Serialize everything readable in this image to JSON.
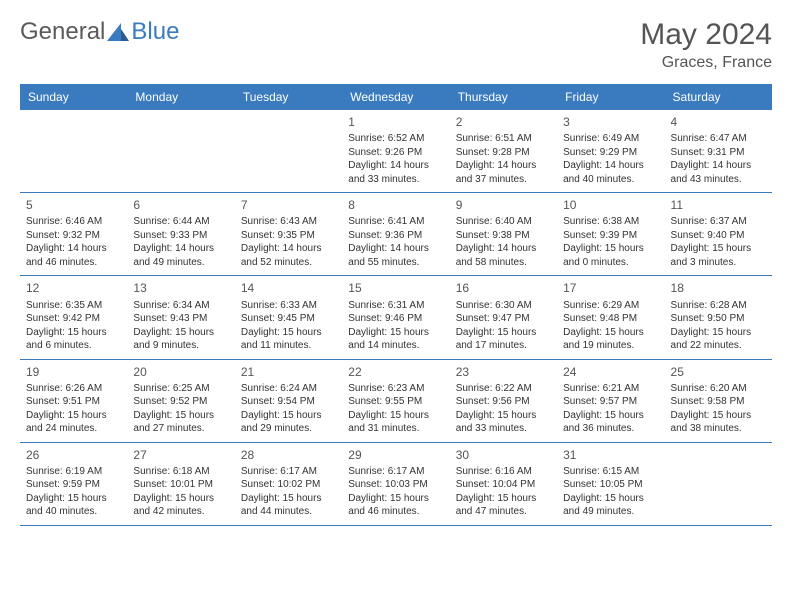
{
  "logo": {
    "part1": "General",
    "part2": "Blue"
  },
  "title": "May 2024",
  "location": "Graces, France",
  "day_headers": [
    "Sunday",
    "Monday",
    "Tuesday",
    "Wednesday",
    "Thursday",
    "Friday",
    "Saturday"
  ],
  "colors": {
    "header_bg": "#3a7bbf",
    "header_text": "#ffffff",
    "border": "#3a7bbf",
    "logo_gray": "#5a5a5a",
    "logo_blue": "#3a7bbf",
    "text": "#333333",
    "title_color": "#555555"
  },
  "weeks": [
    [
      {
        "num": "",
        "lines": [
          "",
          "",
          ""
        ]
      },
      {
        "num": "",
        "lines": [
          "",
          "",
          ""
        ]
      },
      {
        "num": "",
        "lines": [
          "",
          "",
          ""
        ]
      },
      {
        "num": "1",
        "lines": [
          "Sunrise: 6:52 AM",
          "Sunset: 9:26 PM",
          "Daylight: 14 hours and 33 minutes."
        ]
      },
      {
        "num": "2",
        "lines": [
          "Sunrise: 6:51 AM",
          "Sunset: 9:28 PM",
          "Daylight: 14 hours and 37 minutes."
        ]
      },
      {
        "num": "3",
        "lines": [
          "Sunrise: 6:49 AM",
          "Sunset: 9:29 PM",
          "Daylight: 14 hours and 40 minutes."
        ]
      },
      {
        "num": "4",
        "lines": [
          "Sunrise: 6:47 AM",
          "Sunset: 9:31 PM",
          "Daylight: 14 hours and 43 minutes."
        ]
      }
    ],
    [
      {
        "num": "5",
        "lines": [
          "Sunrise: 6:46 AM",
          "Sunset: 9:32 PM",
          "Daylight: 14 hours and 46 minutes."
        ]
      },
      {
        "num": "6",
        "lines": [
          "Sunrise: 6:44 AM",
          "Sunset: 9:33 PM",
          "Daylight: 14 hours and 49 minutes."
        ]
      },
      {
        "num": "7",
        "lines": [
          "Sunrise: 6:43 AM",
          "Sunset: 9:35 PM",
          "Daylight: 14 hours and 52 minutes."
        ]
      },
      {
        "num": "8",
        "lines": [
          "Sunrise: 6:41 AM",
          "Sunset: 9:36 PM",
          "Daylight: 14 hours and 55 minutes."
        ]
      },
      {
        "num": "9",
        "lines": [
          "Sunrise: 6:40 AM",
          "Sunset: 9:38 PM",
          "Daylight: 14 hours and 58 minutes."
        ]
      },
      {
        "num": "10",
        "lines": [
          "Sunrise: 6:38 AM",
          "Sunset: 9:39 PM",
          "Daylight: 15 hours and 0 minutes."
        ]
      },
      {
        "num": "11",
        "lines": [
          "Sunrise: 6:37 AM",
          "Sunset: 9:40 PM",
          "Daylight: 15 hours and 3 minutes."
        ]
      }
    ],
    [
      {
        "num": "12",
        "lines": [
          "Sunrise: 6:35 AM",
          "Sunset: 9:42 PM",
          "Daylight: 15 hours and 6 minutes."
        ]
      },
      {
        "num": "13",
        "lines": [
          "Sunrise: 6:34 AM",
          "Sunset: 9:43 PM",
          "Daylight: 15 hours and 9 minutes."
        ]
      },
      {
        "num": "14",
        "lines": [
          "Sunrise: 6:33 AM",
          "Sunset: 9:45 PM",
          "Daylight: 15 hours and 11 minutes."
        ]
      },
      {
        "num": "15",
        "lines": [
          "Sunrise: 6:31 AM",
          "Sunset: 9:46 PM",
          "Daylight: 15 hours and 14 minutes."
        ]
      },
      {
        "num": "16",
        "lines": [
          "Sunrise: 6:30 AM",
          "Sunset: 9:47 PM",
          "Daylight: 15 hours and 17 minutes."
        ]
      },
      {
        "num": "17",
        "lines": [
          "Sunrise: 6:29 AM",
          "Sunset: 9:48 PM",
          "Daylight: 15 hours and 19 minutes."
        ]
      },
      {
        "num": "18",
        "lines": [
          "Sunrise: 6:28 AM",
          "Sunset: 9:50 PM",
          "Daylight: 15 hours and 22 minutes."
        ]
      }
    ],
    [
      {
        "num": "19",
        "lines": [
          "Sunrise: 6:26 AM",
          "Sunset: 9:51 PM",
          "Daylight: 15 hours and 24 minutes."
        ]
      },
      {
        "num": "20",
        "lines": [
          "Sunrise: 6:25 AM",
          "Sunset: 9:52 PM",
          "Daylight: 15 hours and 27 minutes."
        ]
      },
      {
        "num": "21",
        "lines": [
          "Sunrise: 6:24 AM",
          "Sunset: 9:54 PM",
          "Daylight: 15 hours and 29 minutes."
        ]
      },
      {
        "num": "22",
        "lines": [
          "Sunrise: 6:23 AM",
          "Sunset: 9:55 PM",
          "Daylight: 15 hours and 31 minutes."
        ]
      },
      {
        "num": "23",
        "lines": [
          "Sunrise: 6:22 AM",
          "Sunset: 9:56 PM",
          "Daylight: 15 hours and 33 minutes."
        ]
      },
      {
        "num": "24",
        "lines": [
          "Sunrise: 6:21 AM",
          "Sunset: 9:57 PM",
          "Daylight: 15 hours and 36 minutes."
        ]
      },
      {
        "num": "25",
        "lines": [
          "Sunrise: 6:20 AM",
          "Sunset: 9:58 PM",
          "Daylight: 15 hours and 38 minutes."
        ]
      }
    ],
    [
      {
        "num": "26",
        "lines": [
          "Sunrise: 6:19 AM",
          "Sunset: 9:59 PM",
          "Daylight: 15 hours and 40 minutes."
        ]
      },
      {
        "num": "27",
        "lines": [
          "Sunrise: 6:18 AM",
          "Sunset: 10:01 PM",
          "Daylight: 15 hours and 42 minutes."
        ]
      },
      {
        "num": "28",
        "lines": [
          "Sunrise: 6:17 AM",
          "Sunset: 10:02 PM",
          "Daylight: 15 hours and 44 minutes."
        ]
      },
      {
        "num": "29",
        "lines": [
          "Sunrise: 6:17 AM",
          "Sunset: 10:03 PM",
          "Daylight: 15 hours and 46 minutes."
        ]
      },
      {
        "num": "30",
        "lines": [
          "Sunrise: 6:16 AM",
          "Sunset: 10:04 PM",
          "Daylight: 15 hours and 47 minutes."
        ]
      },
      {
        "num": "31",
        "lines": [
          "Sunrise: 6:15 AM",
          "Sunset: 10:05 PM",
          "Daylight: 15 hours and 49 minutes."
        ]
      },
      {
        "num": "",
        "lines": [
          "",
          "",
          ""
        ]
      }
    ]
  ]
}
